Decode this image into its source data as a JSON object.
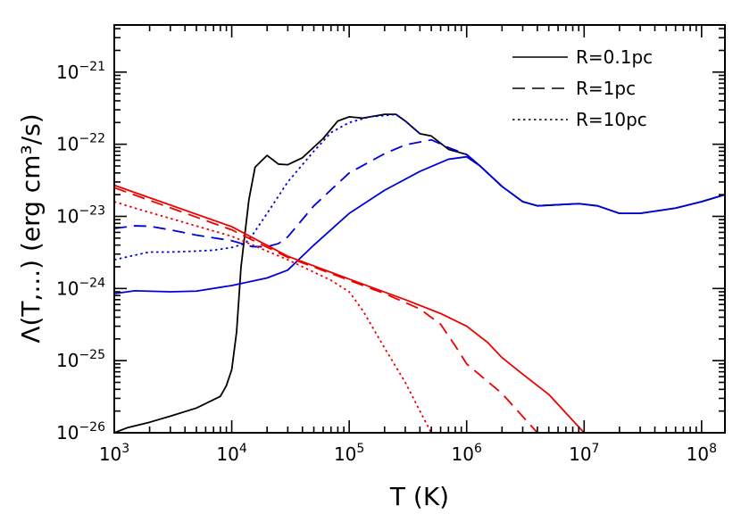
{
  "chart_data": {
    "type": "line",
    "title": "",
    "xlabel": "T (K)",
    "ylabel": "Λ(T,...) (erg cm³/s)",
    "xscale": "log",
    "yscale": "log",
    "xlim": [
      1000,
      158000000
    ],
    "ylim": [
      1e-26,
      4.5e-21
    ],
    "x_ticks": [
      {
        "value": 1000,
        "base": "10",
        "exp": "3"
      },
      {
        "value": 10000,
        "base": "10",
        "exp": "4"
      },
      {
        "value": 100000,
        "base": "10",
        "exp": "5"
      },
      {
        "value": 1000000,
        "base": "10",
        "exp": "6"
      },
      {
        "value": 10000000,
        "base": "10",
        "exp": "7"
      },
      {
        "value": 100000000,
        "base": "10",
        "exp": "8"
      }
    ],
    "y_ticks": [
      {
        "value": 1e-26,
        "base": "10",
        "exp": "−26"
      },
      {
        "value": 1e-25,
        "base": "10",
        "exp": "−25"
      },
      {
        "value": 1e-24,
        "base": "10",
        "exp": "−24"
      },
      {
        "value": 1e-23,
        "base": "10",
        "exp": "−23"
      },
      {
        "value": 1e-22,
        "base": "10",
        "exp": "−22"
      },
      {
        "value": 1e-21,
        "base": "10",
        "exp": "−21"
      }
    ],
    "grid": false,
    "legend_position": "top-right",
    "legend": [
      {
        "label": "R=0.1pc",
        "dash": "solid"
      },
      {
        "label": "R=1pc",
        "dash": "dashed"
      },
      {
        "label": "R=10pc",
        "dash": "dotted"
      }
    ],
    "colors": {
      "black": "#000000",
      "blue": "#0000dd",
      "red": "#ee0000"
    },
    "series": [
      {
        "color": "black",
        "dash": "solid",
        "points": [
          [
            1000,
            1e-26
          ],
          [
            1300,
            1.18e-26
          ],
          [
            2000,
            1.4e-26
          ],
          [
            3000,
            1.7e-26
          ],
          [
            5000,
            2.2e-26
          ],
          [
            8000,
            3.2e-26
          ],
          [
            9000,
            4.5e-26
          ],
          [
            10000,
            7.5e-26
          ],
          [
            11000,
            2.5e-25
          ],
          [
            12000,
            2e-24
          ],
          [
            14000,
            1.7e-23
          ],
          [
            15800,
            4.8e-23
          ],
          [
            20000,
            7e-23
          ],
          [
            25000,
            5.3e-23
          ],
          [
            30000,
            5.2e-23
          ],
          [
            40000,
            6.5e-23
          ],
          [
            60000,
            1.2e-22
          ],
          [
            80000,
            2.1e-22
          ],
          [
            100000,
            2.4e-22
          ],
          [
            130000,
            2.3e-22
          ],
          [
            200000,
            2.6e-22
          ],
          [
            250000,
            2.6e-22
          ],
          [
            300000,
            2.1e-22
          ],
          [
            400000,
            1.4e-22
          ],
          [
            500000,
            1.3e-22
          ],
          [
            700000,
            8.5e-23
          ],
          [
            1000000,
            7.2e-23
          ],
          [
            1300000,
            5e-23
          ],
          [
            2000000,
            2.6e-23
          ],
          [
            3000000,
            1.6e-23
          ],
          [
            4000000,
            1.4e-23
          ],
          [
            6000000,
            1.45e-23
          ],
          [
            9000000,
            1.5e-23
          ],
          [
            13000000,
            1.4e-23
          ],
          [
            20000000,
            1.1e-23
          ],
          [
            30000000,
            1.1e-23
          ],
          [
            60000000,
            1.3e-23
          ],
          [
            100000000,
            1.6e-23
          ],
          [
            158000000,
            2e-23
          ]
        ]
      },
      {
        "color": "blue",
        "dash": "solid",
        "points": [
          [
            1000,
            8.5e-25
          ],
          [
            1500,
            9.3e-25
          ],
          [
            3000,
            9e-25
          ],
          [
            5000,
            9.2e-25
          ],
          [
            10000,
            1.1e-24
          ],
          [
            20000,
            1.4e-24
          ],
          [
            30000,
            1.8e-24
          ],
          [
            50000,
            4e-24
          ],
          [
            100000,
            1.1e-23
          ],
          [
            200000,
            2.3e-23
          ],
          [
            400000,
            4.2e-23
          ],
          [
            700000,
            6.2e-23
          ],
          [
            1000000,
            6.7e-23
          ],
          [
            1300000,
            5e-23
          ],
          [
            2000000,
            2.6e-23
          ],
          [
            3000000,
            1.6e-23
          ],
          [
            4000000,
            1.4e-23
          ],
          [
            6000000,
            1.45e-23
          ],
          [
            9000000,
            1.5e-23
          ],
          [
            13000000,
            1.4e-23
          ],
          [
            20000000,
            1.1e-23
          ],
          [
            30000000,
            1.1e-23
          ],
          [
            60000000,
            1.3e-23
          ],
          [
            100000000,
            1.6e-23
          ],
          [
            158000000,
            2e-23
          ]
        ]
      },
      {
        "color": "blue",
        "dash": "dashed",
        "points": [
          [
            1000,
            6.8e-24
          ],
          [
            1500,
            7.4e-24
          ],
          [
            2000,
            7.3e-24
          ],
          [
            3000,
            6.5e-24
          ],
          [
            5000,
            5.5e-24
          ],
          [
            10000,
            4.6e-24
          ],
          [
            15000,
            3.8e-24
          ],
          [
            20000,
            3.8e-24
          ],
          [
            25000,
            4.2e-24
          ],
          [
            30000,
            5.2e-24
          ],
          [
            50000,
            1.4e-23
          ],
          [
            100000,
            4e-23
          ],
          [
            200000,
            7.4e-23
          ],
          [
            300000,
            9.8e-23
          ],
          [
            500000,
            1.15e-22
          ],
          [
            700000,
            9e-23
          ],
          [
            1000000,
            7.2e-23
          ],
          [
            1300000,
            5e-23
          ],
          [
            2000000,
            2.6e-23
          ]
        ]
      },
      {
        "color": "blue",
        "dash": "dotted",
        "points": [
          [
            1000,
            2.5e-24
          ],
          [
            1500,
            2.9e-24
          ],
          [
            2000,
            3.2e-24
          ],
          [
            3000,
            3.2e-24
          ],
          [
            5000,
            3.3e-24
          ],
          [
            7000,
            3.4e-24
          ],
          [
            10000,
            3.7e-24
          ],
          [
            13000,
            4.2e-24
          ],
          [
            15000,
            5.5e-24
          ],
          [
            20000,
            1.1e-23
          ],
          [
            30000,
            3e-23
          ],
          [
            50000,
            8e-23
          ],
          [
            70000,
            1.45e-22
          ],
          [
            100000,
            2e-22
          ],
          [
            150000,
            2.4e-22
          ],
          [
            200000,
            2.5e-22
          ],
          [
            250000,
            2.6e-22
          ],
          [
            300000,
            2.1e-22
          ],
          [
            400000,
            1.4e-22
          ]
        ]
      },
      {
        "color": "red",
        "dash": "solid",
        "points": [
          [
            1000,
            2.7e-23
          ],
          [
            10000,
            7.2e-24
          ],
          [
            30000,
            2.8e-24
          ],
          [
            100000,
            1.35e-24
          ],
          [
            300000,
            7e-25
          ],
          [
            600000,
            4.5e-25
          ],
          [
            1000000,
            3e-25
          ],
          [
            1500000,
            1.8e-25
          ],
          [
            2000000,
            1.1e-25
          ],
          [
            3000000,
            6.5e-26
          ],
          [
            5000000,
            3.4e-26
          ],
          [
            10000000,
            1e-26
          ]
        ]
      },
      {
        "color": "red",
        "dash": "dashed",
        "points": [
          [
            1000,
            2.5e-23
          ],
          [
            10000,
            6.5e-24
          ],
          [
            30000,
            2.7e-24
          ],
          [
            100000,
            1.3e-24
          ],
          [
            200000,
            8.5e-25
          ],
          [
            400000,
            5.2e-25
          ],
          [
            600000,
            3.2e-25
          ],
          [
            800000,
            1.6e-25
          ],
          [
            1000000,
            9e-26
          ],
          [
            2000000,
            3.5e-26
          ],
          [
            4000000,
            1e-26
          ]
        ]
      },
      {
        "color": "red",
        "dash": "dotted",
        "points": [
          [
            1000,
            1.6e-23
          ],
          [
            1500,
            1.3e-23
          ],
          [
            10000,
            5.3e-24
          ],
          [
            30000,
            2.5e-24
          ],
          [
            70000,
            1.3e-24
          ],
          [
            100000,
            9e-25
          ],
          [
            130000,
            5e-25
          ],
          [
            200000,
            1.5e-25
          ],
          [
            300000,
            5e-26
          ],
          [
            400000,
            2e-26
          ],
          [
            500000,
            1e-26
          ]
        ]
      }
    ]
  }
}
